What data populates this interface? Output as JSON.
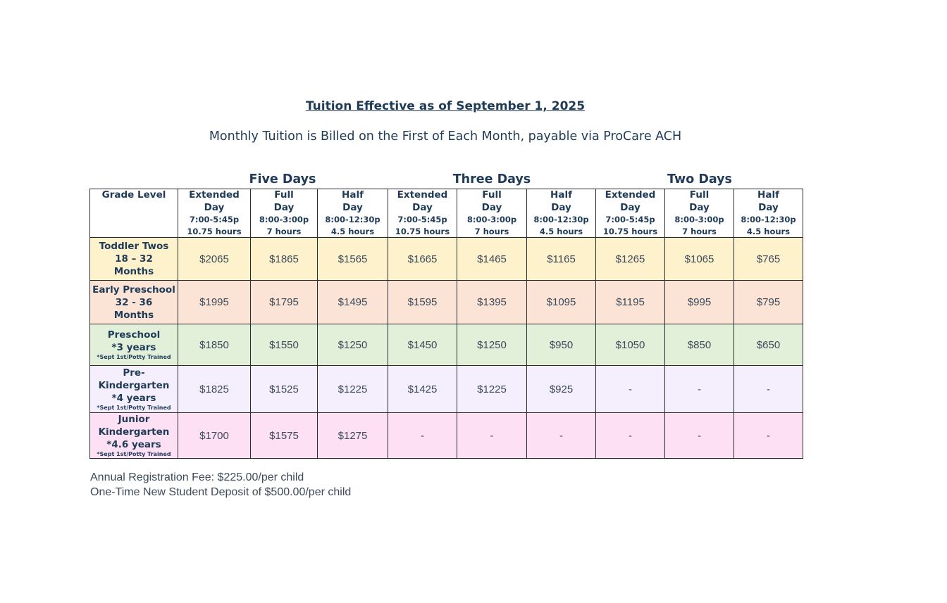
{
  "title": "Tuition Effective as of September 1, 2025",
  "subtitle": "Monthly Tuition is Billed on the First of Each Month, payable via ProCare ACH",
  "groups": [
    "Five Days",
    "Three Days",
    "Two Days"
  ],
  "table": {
    "grade_header": "Grade Level",
    "columns": [
      {
        "line1": "Extended",
        "line2": "Day",
        "time": "7:00-5:45p",
        "hours": "10.75 hours"
      },
      {
        "line1": "Full",
        "line2": "Day",
        "time": "8:00-3:00p",
        "hours": "7 hours"
      },
      {
        "line1": "Half",
        "line2": "Day",
        "time": "8:00-12:30p",
        "hours": "4.5 hours"
      },
      {
        "line1": "Extended",
        "line2": "Day",
        "time": "7:00-5:45p",
        "hours": "10.75 hours"
      },
      {
        "line1": "Full",
        "line2": "Day",
        "time": "8:00-3:00p",
        "hours": "7 hours"
      },
      {
        "line1": "Half",
        "line2": "Day",
        "time": "8:00-12:30p",
        "hours": "4.5 hours"
      },
      {
        "line1": "Extended",
        "line2": "Day",
        "time": "7:00-5:45p",
        "hours": "10.75 hours"
      },
      {
        "line1": "Full",
        "line2": "Day",
        "time": "8:00-3:00p",
        "hours": "7 hours"
      },
      {
        "line1": "Half",
        "line2": "Day",
        "time": "8:00-12:30p",
        "hours": "4.5 hours"
      }
    ],
    "rows": [
      {
        "grade_lines": [
          "Toddler Twos",
          "18 – 32",
          "Months"
        ],
        "note": "",
        "prices": [
          "$2065",
          "$1865",
          "$1565",
          "$1665",
          "$1465",
          "$1165",
          "$1265",
          "$1065",
          "$765"
        ]
      },
      {
        "grade_lines": [
          "Early Preschool",
          "32 - 36",
          "Months"
        ],
        "note": "",
        "prices": [
          "$1995",
          "$1795",
          "$1495",
          "$1595",
          "$1395",
          "$1095",
          "$1195",
          "$995",
          "$795"
        ]
      },
      {
        "grade_lines": [
          "Preschool",
          "*3 years"
        ],
        "note": "*Sept 1st/Potty Trained",
        "prices": [
          "$1850",
          "$1550",
          "$1250",
          "$1450",
          "$1250",
          "$950",
          "$1050",
          "$850",
          "$650"
        ]
      },
      {
        "grade_lines": [
          "Pre-",
          "Kindergarten",
          "*4 years"
        ],
        "note": "*Sept 1st/Potty Trained",
        "prices": [
          "$1825",
          "$1525",
          "$1225",
          "$1425",
          "$1225",
          "$925",
          "-",
          "-",
          "-"
        ]
      },
      {
        "grade_lines": [
          "Junior",
          "Kindergarten",
          "*4.6 years"
        ],
        "note": "*Sept 1st/Potty Trained",
        "prices": [
          "$1700",
          "$1575",
          "$1275",
          "-",
          "-",
          "-",
          "-",
          "-",
          "-"
        ]
      }
    ]
  },
  "footer": {
    "registration_fee": "Annual Registration Fee: $225.00/per child",
    "deposit": "One-Time New Student Deposit of $500.00/per child"
  }
}
